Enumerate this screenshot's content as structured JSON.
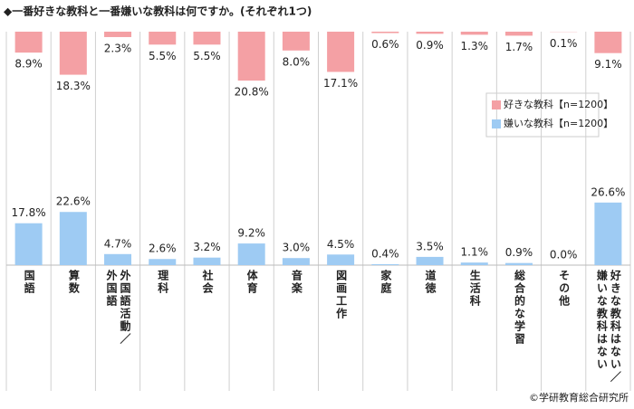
{
  "chart_data": {
    "type": "diverging-bar",
    "title": "◆一番好きな教科と一番嫌いな教科は何ですか。(それぞれ1つ)",
    "categories": [
      "国語",
      "算数",
      "外国語活動／\n外国語",
      "理科",
      "社会",
      "体育",
      "音楽",
      "図画工作",
      "家庭",
      "道徳",
      "生活科",
      "総合的な学習",
      "その他",
      "好きな教科はない／\n嫌いな教科はない"
    ],
    "series": [
      {
        "name": "好きな教科【n=1200】",
        "color": "#f4a0a4",
        "values": [
          8.9,
          18.3,
          2.3,
          5.5,
          5.5,
          20.8,
          8.0,
          17.1,
          0.6,
          0.9,
          1.3,
          1.7,
          0.1,
          9.1
        ],
        "value_labels": [
          "8.9%",
          "18.3%",
          "2.3%",
          "5.5%",
          "5.5%",
          "20.8%",
          "8.0%",
          "17.1%",
          "0.6%",
          "0.9%",
          "1.3%",
          "1.7%",
          "0.1%",
          "9.1%"
        ]
      },
      {
        "name": "嫌いな教科【n=1200】",
        "color": "#9ecbf3",
        "values": [
          17.8,
          22.6,
          4.7,
          2.6,
          3.2,
          9.2,
          3.0,
          4.5,
          0.4,
          3.5,
          1.1,
          0.9,
          0.0,
          26.6
        ],
        "value_labels": [
          "17.8%",
          "22.6%",
          "4.7%",
          "2.6%",
          "3.2%",
          "9.2%",
          "3.0%",
          "4.5%",
          "0.4%",
          "3.5%",
          "1.1%",
          "0.9%",
          "0.0%",
          "26.6%"
        ]
      }
    ],
    "source": "©学研教育総合研究所"
  }
}
